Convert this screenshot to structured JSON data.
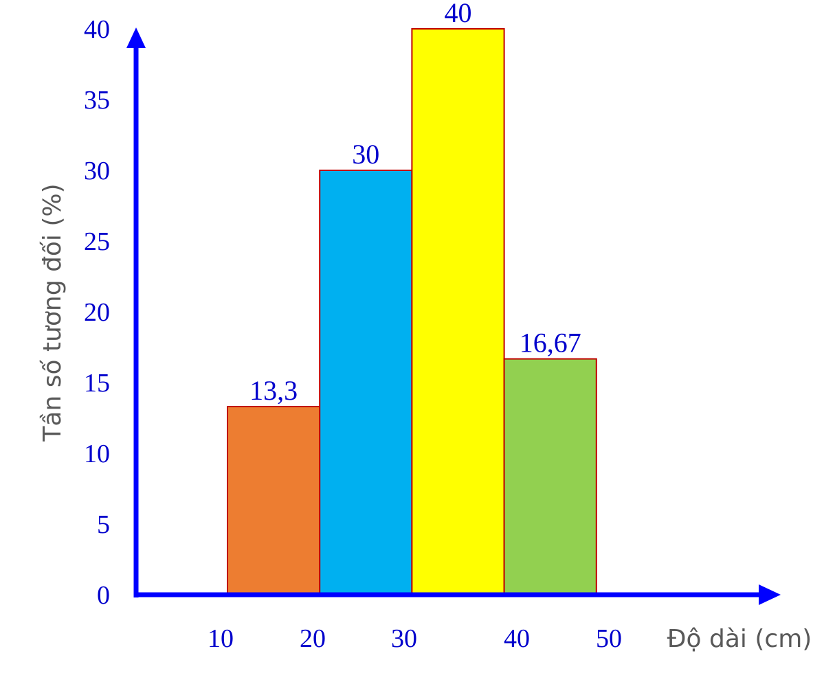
{
  "chart_data": {
    "type": "bar",
    "title": "",
    "xlabel": "Độ dài (cm)",
    "ylabel": "Tần số tương đối (%)",
    "ylim": [
      0,
      40
    ],
    "y_ticks": [
      "0",
      "5",
      "10",
      "15",
      "20",
      "25",
      "30",
      "35",
      "40"
    ],
    "x_ticks": [
      "10",
      "20",
      "30",
      "40",
      "50"
    ],
    "bins": [
      {
        "from": 10,
        "to": 20,
        "value": 13.3,
        "label": "13,3",
        "color": "#ed7d31"
      },
      {
        "from": 20,
        "to": 30,
        "value": 30,
        "label": "30",
        "color": "#00b0f0"
      },
      {
        "from": 30,
        "to": 40,
        "value": 40,
        "label": "40",
        "color": "#ffff00"
      },
      {
        "from": 40,
        "to": 50,
        "value": 16.67,
        "label": "16,67",
        "color": "#92d050"
      }
    ],
    "grid": false,
    "legend": "none",
    "colors": {
      "axis": "#0000ff",
      "tick_text": "#0000cc",
      "bar_border": "#c00000",
      "axis_title": "#595959"
    }
  }
}
